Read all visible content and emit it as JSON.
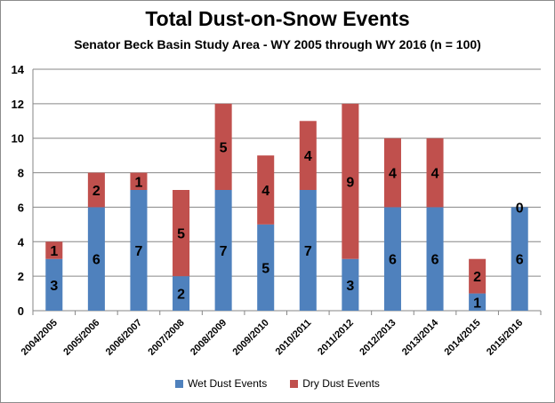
{
  "chart_data": {
    "type": "bar",
    "stacked": true,
    "title": "Total Dust-on-Snow Events",
    "subtitle": "Senator Beck Basin Study Area - WY 2005 through WY 2016 (n = 100)",
    "xlabel": "",
    "ylabel": "",
    "ylim": [
      0,
      14
    ],
    "yticks": [
      "0",
      "2",
      "4",
      "6",
      "8",
      "10",
      "12",
      "14"
    ],
    "grid": true,
    "legend_position": "bottom",
    "categories": [
      "2004/2005",
      "2005/2006",
      "2006/2007",
      "2007/2008",
      "2008/2009",
      "2009/2010",
      "2010/2011",
      "2011/2012",
      "2012/2013",
      "2013/2014",
      "2014/2015",
      "2015/2016"
    ],
    "series": [
      {
        "name": "Wet Dust Events",
        "color": "#4f81bd",
        "values": [
          3,
          6,
          7,
          2,
          7,
          5,
          7,
          3,
          6,
          6,
          1,
          6
        ]
      },
      {
        "name": "Dry Dust Events",
        "color": "#c0504d",
        "values": [
          1,
          2,
          1,
          5,
          5,
          4,
          4,
          9,
          4,
          4,
          2,
          0
        ]
      }
    ]
  }
}
